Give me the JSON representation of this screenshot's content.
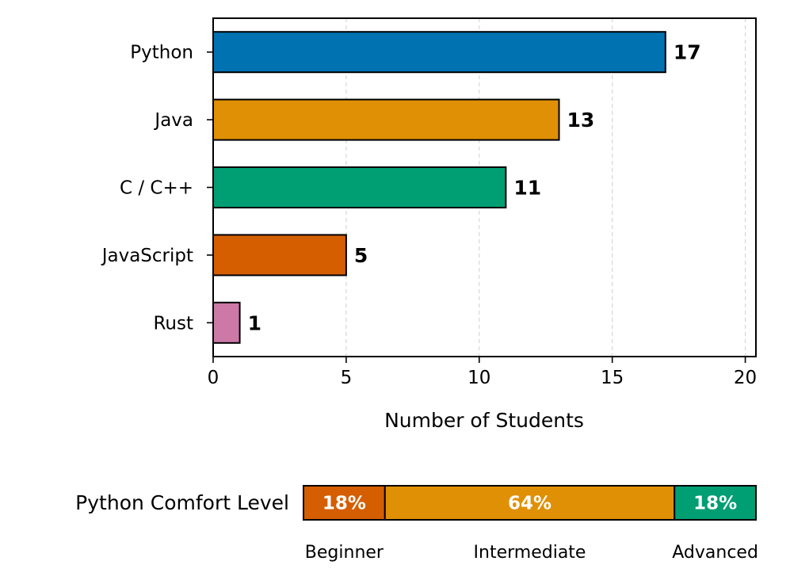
{
  "chart_data": [
    {
      "type": "bar",
      "orientation": "horizontal",
      "title": "",
      "categories": [
        "Python",
        "Java",
        "C / C++",
        "JavaScript",
        "Rust"
      ],
      "values": [
        17,
        13,
        11,
        5,
        1
      ],
      "data_labels": [
        "17",
        "13",
        "11",
        "5",
        "1"
      ],
      "colors": [
        "#0072b2",
        "#e09005",
        "#009e73",
        "#d55e00",
        "#cc79a7"
      ],
      "xlabel": "Number of Students",
      "ylabel": "",
      "xlim": [
        0,
        20.4
      ],
      "xticks": [
        0,
        5,
        10,
        15,
        20
      ],
      "xtick_labels": [
        "0",
        "5",
        "10",
        "15",
        "20"
      ],
      "grid": "x dashed"
    },
    {
      "type": "bar",
      "orientation": "stacked-horizontal",
      "title": "Python Comfort Level",
      "categories": [
        "Beginner",
        "Intermediate",
        "Advanced"
      ],
      "values": [
        18,
        64,
        18
      ],
      "data_labels": [
        "18%",
        "64%",
        "18%"
      ],
      "colors": [
        "#d55e00",
        "#e09005",
        "#009e73"
      ],
      "xlim": [
        0,
        100
      ]
    }
  ]
}
